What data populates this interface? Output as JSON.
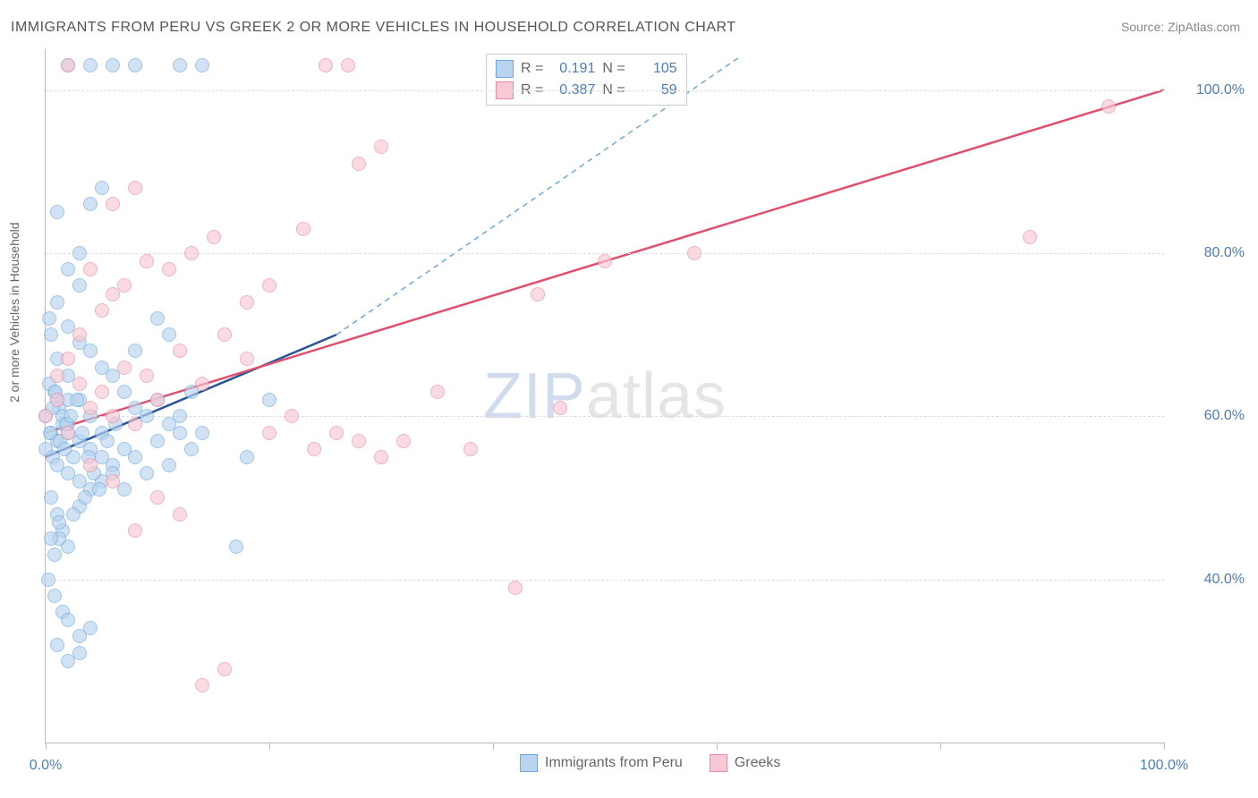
{
  "title": "IMMIGRANTS FROM PERU VS GREEK 2 OR MORE VEHICLES IN HOUSEHOLD CORRELATION CHART",
  "source": "Source: ZipAtlas.com",
  "ylabel": "2 or more Vehicles in Household",
  "watermark_a": "ZIP",
  "watermark_b": "atlas",
  "chart": {
    "type": "scatter",
    "xlim": [
      0,
      100
    ],
    "ylim": [
      20,
      105
    ],
    "xticks": [
      0,
      20,
      40,
      60,
      80,
      100
    ],
    "xtick_labels": [
      "0.0%",
      "",
      "",
      "",
      "",
      "100.0%"
    ],
    "yticks": [
      40,
      60,
      80,
      100
    ],
    "ytick_labels": [
      "40.0%",
      "60.0%",
      "80.0%",
      "100.0%"
    ],
    "grid_color": "#dddddd",
    "background": "#ffffff",
    "point_radius": 7,
    "series": [
      {
        "name": "Immigrants from Peru",
        "color_fill": "#b8d4ee",
        "color_stroke": "#6fa8dc",
        "R": "0.191",
        "N": "105",
        "trend": {
          "x1": 0,
          "y1": 55,
          "x2": 26,
          "y2": 70,
          "dash_x2": 62,
          "dash_y2": 104,
          "color": "#2a5599",
          "dash_color": "#6fa8dc"
        },
        "points": [
          [
            0,
            60
          ],
          [
            0.5,
            58
          ],
          [
            1,
            62
          ],
          [
            1,
            57
          ],
          [
            1.2,
            61
          ],
          [
            0.8,
            63
          ],
          [
            1.5,
            59
          ],
          [
            0,
            56
          ],
          [
            0.3,
            64
          ],
          [
            0.6,
            55
          ],
          [
            1,
            54
          ],
          [
            1.5,
            60
          ],
          [
            2,
            58
          ],
          [
            2,
            53
          ],
          [
            2.5,
            55
          ],
          [
            3,
            57
          ],
          [
            3,
            52
          ],
          [
            0.5,
            50
          ],
          [
            1,
            48
          ],
          [
            1.5,
            46
          ],
          [
            2,
            44
          ],
          [
            0.8,
            43
          ],
          [
            1.2,
            45
          ],
          [
            3,
            49
          ],
          [
            4,
            51
          ],
          [
            5,
            55
          ],
          [
            6,
            54
          ],
          [
            7,
            56
          ],
          [
            5,
            58
          ],
          [
            4,
            60
          ],
          [
            3,
            62
          ],
          [
            2,
            65
          ],
          [
            1,
            67
          ],
          [
            0.5,
            70
          ],
          [
            0.3,
            72
          ],
          [
            1,
            74
          ],
          [
            2,
            71
          ],
          [
            3,
            69
          ],
          [
            4,
            68
          ],
          [
            5,
            66
          ],
          [
            6,
            65
          ],
          [
            7,
            63
          ],
          [
            8,
            61
          ],
          [
            9,
            60
          ],
          [
            10,
            62
          ],
          [
            11,
            59
          ],
          [
            12,
            58
          ],
          [
            10,
            57
          ],
          [
            8,
            55
          ],
          [
            6,
            53
          ],
          [
            4,
            56
          ],
          [
            2,
            59
          ],
          [
            0.2,
            40
          ],
          [
            0.8,
            38
          ],
          [
            1.5,
            36
          ],
          [
            2,
            35
          ],
          [
            3,
            33
          ],
          [
            4,
            34
          ],
          [
            1,
            32
          ],
          [
            2,
            30
          ],
          [
            3,
            31
          ],
          [
            0.5,
            45
          ],
          [
            1.2,
            47
          ],
          [
            2.5,
            48
          ],
          [
            3.5,
            50
          ],
          [
            5,
            52
          ],
          [
            7,
            51
          ],
          [
            9,
            53
          ],
          [
            11,
            54
          ],
          [
            13,
            56
          ],
          [
            14,
            58
          ],
          [
            13,
            63
          ],
          [
            12,
            60
          ],
          [
            2,
            78
          ],
          [
            3,
            76
          ],
          [
            4,
            86
          ],
          [
            1,
            85
          ],
          [
            2,
            103
          ],
          [
            4,
            103
          ],
          [
            6,
            103
          ],
          [
            8,
            103
          ],
          [
            12,
            103
          ],
          [
            14,
            103
          ],
          [
            5,
            88
          ],
          [
            3,
            80
          ],
          [
            2,
            62
          ],
          [
            1.8,
            59
          ],
          [
            0.6,
            61
          ],
          [
            0.4,
            58
          ],
          [
            0.9,
            63
          ],
          [
            1.3,
            57
          ],
          [
            1.7,
            56
          ],
          [
            2.2,
            60
          ],
          [
            2.8,
            62
          ],
          [
            3.3,
            58
          ],
          [
            3.8,
            55
          ],
          [
            4.3,
            53
          ],
          [
            4.8,
            51
          ],
          [
            5.5,
            57
          ],
          [
            6.2,
            59
          ],
          [
            17,
            44
          ],
          [
            18,
            55
          ],
          [
            20,
            62
          ],
          [
            8,
            68
          ],
          [
            10,
            72
          ],
          [
            11,
            70
          ]
        ]
      },
      {
        "name": "Greeks",
        "color_fill": "#f8c8d4",
        "color_stroke": "#e88ba4",
        "R": "0.387",
        "N": "59",
        "trend": {
          "x1": 0,
          "y1": 58,
          "x2": 100,
          "y2": 100,
          "color": "#e0506e"
        },
        "points": [
          [
            0,
            60
          ],
          [
            1,
            62
          ],
          [
            2,
            58
          ],
          [
            3,
            64
          ],
          [
            4,
            61
          ],
          [
            5,
            63
          ],
          [
            6,
            60
          ],
          [
            7,
            66
          ],
          [
            8,
            59
          ],
          [
            9,
            65
          ],
          [
            10,
            62
          ],
          [
            12,
            68
          ],
          [
            14,
            64
          ],
          [
            16,
            70
          ],
          [
            18,
            67
          ],
          [
            20,
            58
          ],
          [
            22,
            60
          ],
          [
            24,
            56
          ],
          [
            26,
            58
          ],
          [
            28,
            57
          ],
          [
            30,
            55
          ],
          [
            32,
            57
          ],
          [
            14,
            27
          ],
          [
            16,
            29
          ],
          [
            12,
            48
          ],
          [
            8,
            46
          ],
          [
            10,
            50
          ],
          [
            6,
            52
          ],
          [
            4,
            54
          ],
          [
            2,
            67
          ],
          [
            3,
            70
          ],
          [
            5,
            73
          ],
          [
            7,
            76
          ],
          [
            9,
            79
          ],
          [
            11,
            78
          ],
          [
            13,
            80
          ],
          [
            15,
            82
          ],
          [
            8,
            88
          ],
          [
            6,
            86
          ],
          [
            25,
            103
          ],
          [
            27,
            103
          ],
          [
            30,
            93
          ],
          [
            28,
            91
          ],
          [
            23,
            83
          ],
          [
            20,
            76
          ],
          [
            18,
            74
          ],
          [
            50,
            79
          ],
          [
            44,
            75
          ],
          [
            58,
            80
          ],
          [
            46,
            61
          ],
          [
            42,
            39
          ],
          [
            95,
            98
          ],
          [
            88,
            82
          ],
          [
            38,
            56
          ],
          [
            35,
            63
          ],
          [
            2,
            103
          ],
          [
            4,
            78
          ],
          [
            6,
            75
          ],
          [
            1,
            65
          ]
        ]
      }
    ]
  },
  "legend_bottom": [
    {
      "label": "Immigrants from Peru",
      "fill": "#b8d4ee",
      "stroke": "#6fa8dc"
    },
    {
      "label": "Greeks",
      "fill": "#f8c8d4",
      "stroke": "#e88ba4"
    }
  ]
}
